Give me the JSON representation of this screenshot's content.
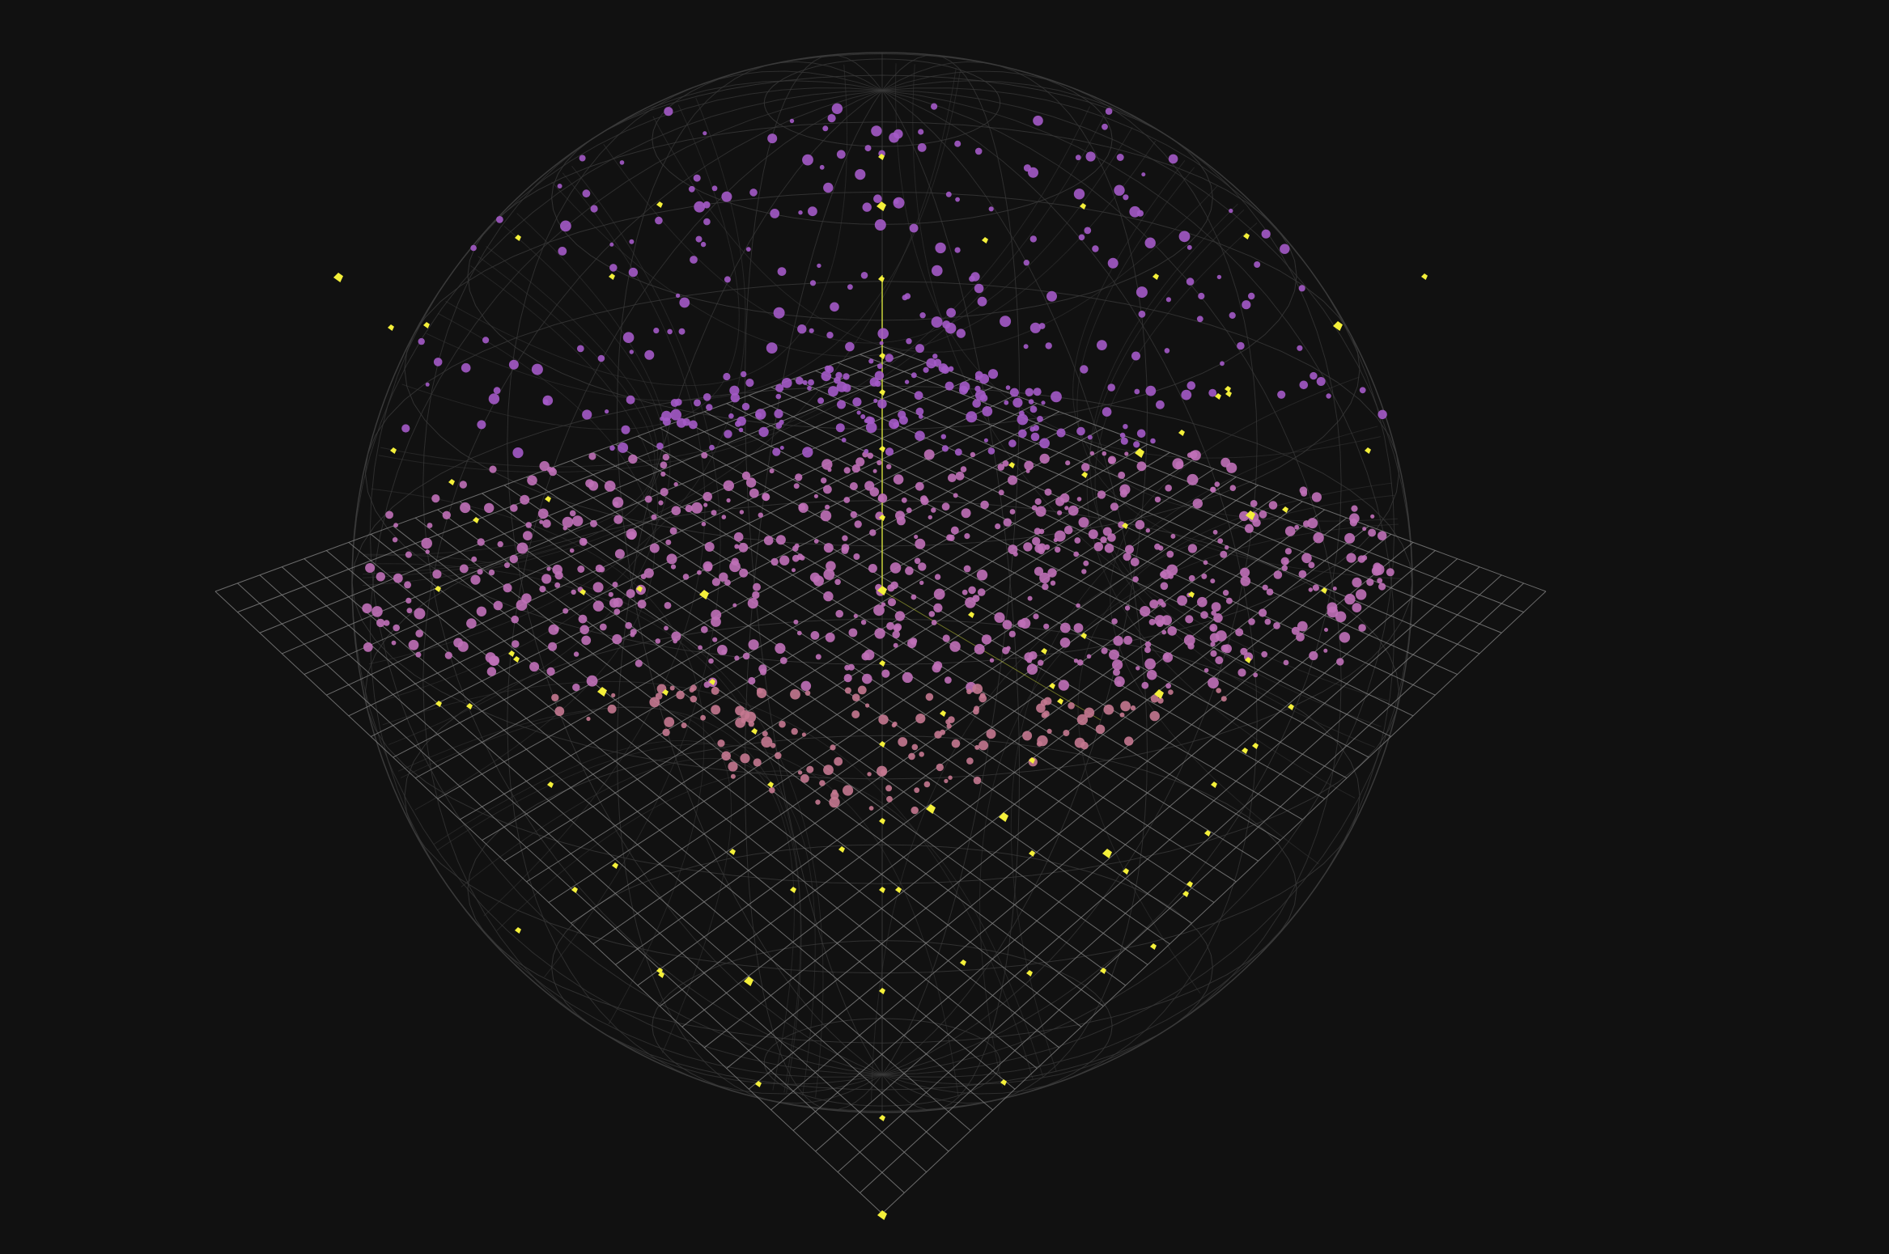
{
  "scene": {
    "background_color": "#111111",
    "grid_color": "#8a8a8a",
    "sphere_color": "#3a3a3a",
    "axis_color": "#c8d23c",
    "marker_color": "#f4f03a",
    "point_colors": {
      "upper": "#a45ac8",
      "middle": "#c070b8",
      "lower": "#c47890",
      "bottom": "#c88060"
    },
    "grid_divisions": 30,
    "sphere_wireframe": true,
    "icons": [
      "sphere-wireframe",
      "ground-grid",
      "vertical-axis",
      "marker-icon"
    ]
  }
}
